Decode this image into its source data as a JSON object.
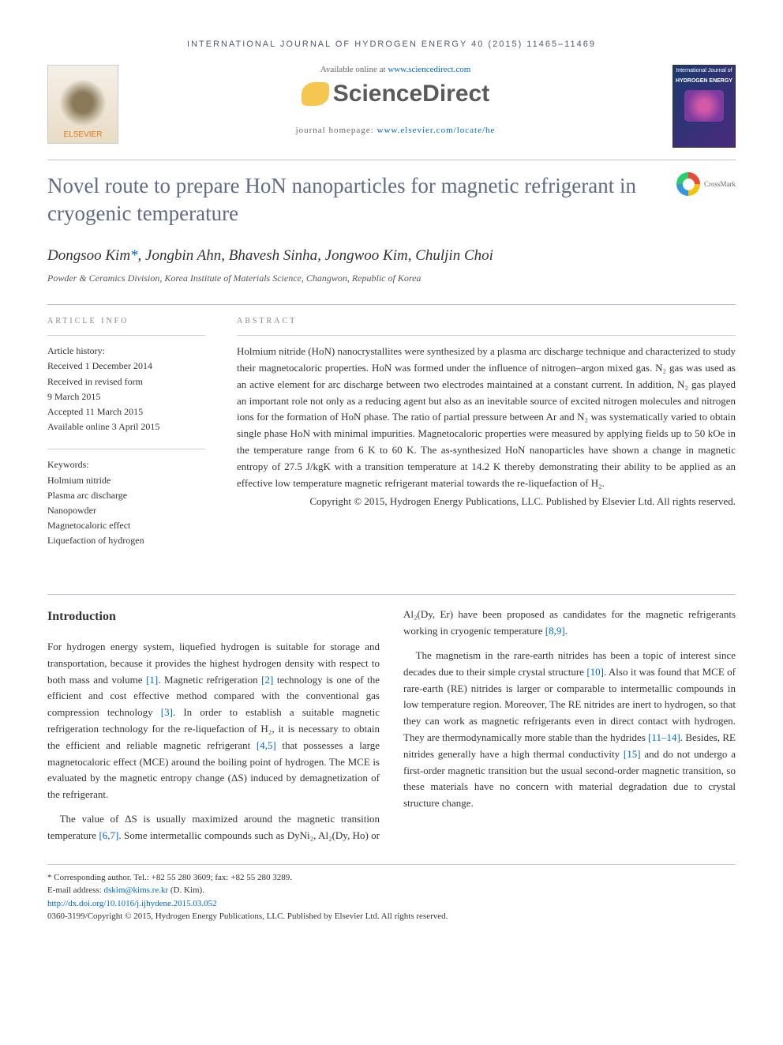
{
  "journal_header": "INTERNATIONAL JOURNAL OF HYDROGEN ENERGY 40 (2015) 11465–11469",
  "header": {
    "available_prefix": "Available online at ",
    "available_link": "www.sciencedirect.com",
    "sciencedirect": "ScienceDirect",
    "elsevier": "ELSEVIER",
    "homepage_prefix": "journal homepage: ",
    "homepage_link": "www.elsevier.com/locate/he",
    "cover_text1": "International Journal of",
    "cover_text2": "HYDROGEN ENERGY",
    "crossmark": "CrossMark"
  },
  "title": "Novel route to prepare HoN nanoparticles for magnetic refrigerant in cryogenic temperature",
  "authors": "Dongsoo Kim",
  "authors_rest": ", Jongbin Ahn, Bhavesh Sinha, Jongwoo Kim, Chuljin Choi",
  "corr": "*",
  "affiliation": "Powder & Ceramics Division, Korea Institute of Materials Science, Changwon, Republic of Korea",
  "info": {
    "label": "ARTICLE INFO",
    "history_label": "Article history:",
    "h1": "Received 1 December 2014",
    "h2": "Received in revised form",
    "h3": "9 March 2015",
    "h4": "Accepted 11 March 2015",
    "h5": "Available online 3 April 2015",
    "keywords_label": "Keywords:",
    "k1": "Holmium nitride",
    "k2": "Plasma arc discharge",
    "k3": "Nanopowder",
    "k4": "Magnetocaloric effect",
    "k5": "Liquefaction of hydrogen"
  },
  "abstract": {
    "label": "ABSTRACT",
    "text": "Holmium nitride (HoN) nanocrystallites were synthesized by a plasma arc discharge technique and characterized to study their magnetocaloric properties. HoN was formed under the influence of nitrogen–argon mixed gas. N₂ gas was used as an active element for arc discharge between two electrodes maintained at a constant current. In addition, N₂ gas played an important role not only as a reducing agent but also as an inevitable source of excited nitrogen molecules and nitrogen ions for the formation of HoN phase. The ratio of partial pressure between Ar and N₂ was systematically varied to obtain single phase HoN with minimal impurities. Magnetocaloric properties were measured by applying fields up to 50 kOe in the temperature range from 6 K to 60 K. The as-synthesized HoN nanoparticles have shown a change in magnetic entropy of 27.5 J/kgK with a transition temperature at 14.2 K thereby demonstrating their ability to be applied as an effective low temperature magnetic refrigerant material towards the re-liquefaction of H₂.",
    "copyright": "Copyright © 2015, Hydrogen Energy Publications, LLC. Published by Elsevier Ltd. All rights reserved."
  },
  "intro": {
    "heading": "Introduction",
    "p1a": "For hydrogen energy system, liquefied hydrogen is suitable for storage and transportation, because it provides the highest hydrogen density with respect to both mass and volume ",
    "r1": "[1]",
    "p1b": ". Magnetic refrigeration ",
    "r2": "[2]",
    "p1c": " technology is one of the efficient and cost effective method compared with the conventional gas compression technology ",
    "r3": "[3]",
    "p1d": ". In order to establish a suitable magnetic refrigeration technology for the re-liquefaction of H₂, it is necessary to obtain the efficient and reliable magnetic refrigerant ",
    "r45": "[4,5]",
    "p1e": " that possesses a large magnetocaloric effect (MCE) around the boiling point of hydrogen. The MCE is evaluated by the magnetic entropy change (ΔS) induced by demagnetization of the refrigerant.",
    "p2a": "The value of ΔS is usually maximized around the magnetic transition temperature ",
    "r67": "[6,7]",
    "p2b": ". Some intermetallic compounds such as DyNi₂, Al₂(Dy, Ho) or Al₂(Dy, Er) have been proposed as candidates for the magnetic refrigerants working in cryogenic temperature ",
    "r89": "[8,9]",
    "p2c": ".",
    "p3a": "The magnetism in the rare-earth nitrides has been a topic of interest since decades due to their simple crystal structure ",
    "r10": "[10]",
    "p3b": ". Also it was found that MCE of rare-earth (RE) nitrides is larger or comparable to intermetallic compounds in low temperature region. Moreover, The RE nitrides are inert to hydrogen, so that they can work as magnetic refrigerants even in direct contact with hydrogen. They are thermodynamically more stable than the hydrides ",
    "r1114": "[11–14]",
    "p3c": ". Besides, RE nitrides generally have a high thermal conductivity ",
    "r15": "[15]",
    "p3d": " and do not undergo a first-order magnetic transition but the usual second-order magnetic transition, so these materials have no concern with material degradation due to crystal structure change."
  },
  "footer": {
    "corr": "* Corresponding author. Tel.: +82 55 280 3609; fax: +82 55 280 3289.",
    "email_label": "E-mail address: ",
    "email": "dskim@kims.re.kr",
    "email_suffix": " (D. Kim).",
    "doi": "http://dx.doi.org/10.1016/j.ijhydene.2015.03.052",
    "issn": "0360-3199/Copyright © 2015, Hydrogen Energy Publications, LLC. Published by Elsevier Ltd. All rights reserved."
  }
}
